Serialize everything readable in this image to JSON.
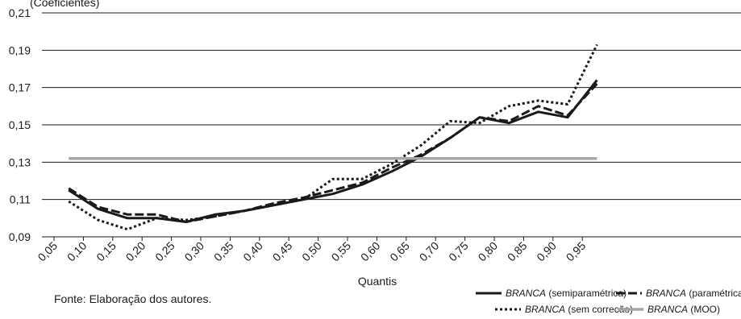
{
  "chart_data": {
    "type": "line",
    "ylabel": "(Coeficientes)",
    "xlabel": "Quantis",
    "ylim": [
      0.09,
      0.21
    ],
    "yticks": [
      "0,09",
      "0,11",
      "0,13",
      "0,15",
      "0,17",
      "0,19",
      "0,21"
    ],
    "yticks_values": [
      0.09,
      0.11,
      0.13,
      0.15,
      0.17,
      0.19,
      0.21
    ],
    "xlim": [
      0.05,
      1.0
    ],
    "xticks": [
      "0,05",
      "0,10",
      "0,15",
      "0,20",
      "0,25",
      "0,30",
      "0,35",
      "0,40",
      "0,45",
      "0,50",
      "0,55",
      "0,60",
      "0,65",
      "0,70",
      "0,75",
      "0,80",
      "0,85",
      "0,90",
      "0,95"
    ],
    "xticks_values": [
      0.05,
      0.1,
      0.15,
      0.2,
      0.25,
      0.3,
      0.35,
      0.4,
      0.45,
      0.5,
      0.55,
      0.6,
      0.65,
      0.7,
      0.75,
      0.8,
      0.85,
      0.9,
      0.95
    ],
    "x": [
      0.075,
      0.125,
      0.175,
      0.225,
      0.275,
      0.325,
      0.375,
      0.425,
      0.475,
      0.525,
      0.575,
      0.625,
      0.675,
      0.725,
      0.775,
      0.825,
      0.875,
      0.925,
      0.975
    ],
    "grid": "horizontal",
    "series": [
      {
        "name_italic": "BRANCA",
        "name_rest": " (semiparamétrica)",
        "style": "solid",
        "color": "#1a1a1a",
        "values": [
          0.115,
          0.105,
          0.1,
          0.1,
          0.098,
          0.102,
          0.104,
          0.107,
          0.11,
          0.113,
          0.118,
          0.125,
          0.133,
          0.143,
          0.154,
          0.151,
          0.157,
          0.154,
          0.174
        ]
      },
      {
        "name_italic": "BRANCA",
        "name_rest": " (paramétrica)",
        "style": "dashed",
        "color": "#1a1a1a",
        "values": [
          0.116,
          0.106,
          0.102,
          0.102,
          0.098,
          0.101,
          0.104,
          0.108,
          0.111,
          0.115,
          0.119,
          0.127,
          0.134,
          0.143,
          0.154,
          0.152,
          0.16,
          0.155,
          0.172
        ]
      },
      {
        "name_italic": "BRANCA",
        "name_rest": " (sem correcão)",
        "style": "dotted",
        "color": "#1a1a1a",
        "values": [
          0.109,
          0.099,
          0.094,
          0.1,
          0.099,
          0.101,
          0.104,
          0.107,
          0.11,
          0.121,
          0.121,
          0.129,
          0.139,
          0.152,
          0.151,
          0.16,
          0.163,
          0.161,
          0.193
        ]
      },
      {
        "name_italic": "BRANCA",
        "name_rest": " (MOO)",
        "style": "solid",
        "color": "#a6a6a6",
        "values": [
          0.132,
          0.132,
          0.132,
          0.132,
          0.132,
          0.132,
          0.132,
          0.132,
          0.132,
          0.132,
          0.132,
          0.132,
          0.132,
          0.132,
          0.132,
          0.132,
          0.132,
          0.132,
          0.132
        ]
      }
    ]
  },
  "source": "Fonte: Elaboração dos autores."
}
